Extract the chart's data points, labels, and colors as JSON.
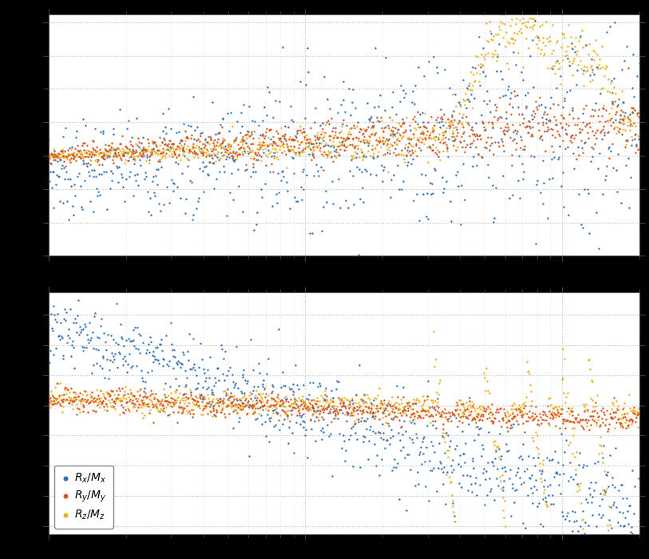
{
  "color_blue": "#3070B8",
  "color_red": "#D95319",
  "color_yellow": "#EDB120",
  "background": "#000000",
  "axes_bg": "#FFFFFF",
  "legend_labels": [
    "$R_x/M_x$",
    "$R_y/M_y$",
    "$R_z/M_z$"
  ],
  "n_points": 800,
  "seed": 7,
  "freq_min": 1,
  "freq_max": 200
}
